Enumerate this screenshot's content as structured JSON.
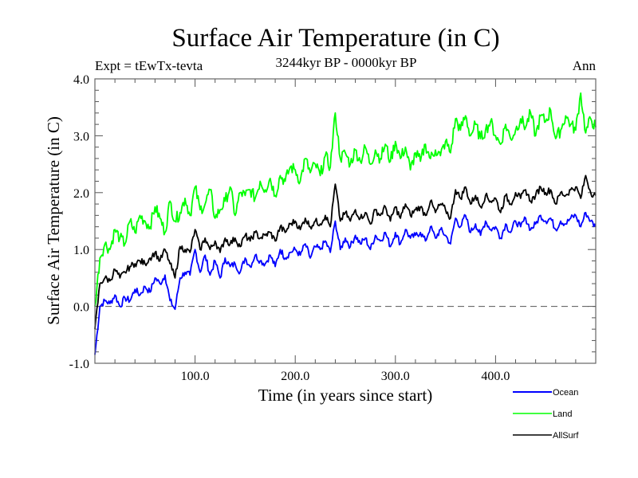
{
  "chart_data": {
    "type": "line",
    "title": "Surface Air Temperature (in C)",
    "subtitle": "3244kyr BP - 0000kyr BP",
    "left_annotation": "Expt = tEwTx-tevta",
    "right_annotation": "Ann",
    "xlabel": "Time (in years since start)",
    "ylabel": "Surface Air Temperature (in C)",
    "xlim": [
      0,
      500
    ],
    "ylim": [
      -1.0,
      4.0
    ],
    "xticks": [
      100,
      200,
      300,
      400
    ],
    "xtick_labels": [
      "100.0",
      "200.0",
      "300.0",
      "400.0"
    ],
    "xminor_step": 20,
    "yticks": [
      -1.0,
      0.0,
      1.0,
      2.0,
      3.0,
      4.0
    ],
    "ytick_labels": [
      "-1.0",
      "0.0",
      "1.0",
      "2.0",
      "3.0",
      "4.0"
    ],
    "yminor_step": 0.2,
    "reference_line": {
      "y": 0.0,
      "style": "dashed"
    },
    "grid": false,
    "legend_position": "bottom-right",
    "x": [
      0,
      5,
      10,
      15,
      20,
      25,
      30,
      35,
      40,
      45,
      50,
      55,
      60,
      65,
      70,
      75,
      80,
      85,
      90,
      95,
      100,
      105,
      110,
      115,
      120,
      125,
      130,
      135,
      140,
      145,
      150,
      155,
      160,
      165,
      170,
      175,
      180,
      185,
      190,
      195,
      200,
      205,
      210,
      215,
      220,
      225,
      230,
      235,
      240,
      245,
      250,
      255,
      260,
      265,
      270,
      275,
      280,
      285,
      290,
      295,
      300,
      305,
      310,
      315,
      320,
      325,
      330,
      335,
      340,
      345,
      350,
      355,
      360,
      365,
      370,
      375,
      380,
      385,
      390,
      395,
      400,
      405,
      410,
      415,
      420,
      425,
      430,
      435,
      440,
      445,
      450,
      455,
      460,
      465,
      470,
      475,
      480,
      485,
      490,
      495,
      500
    ],
    "series": [
      {
        "name": "Ocean",
        "color": "#0000ff",
        "values": [
          -0.85,
          0.0,
          0.1,
          0.05,
          0.2,
          0.0,
          0.15,
          0.1,
          0.3,
          0.2,
          0.35,
          0.25,
          0.5,
          0.4,
          0.55,
          0.1,
          -0.05,
          0.5,
          0.6,
          0.55,
          1.0,
          0.6,
          0.9,
          0.55,
          0.8,
          0.5,
          0.85,
          0.7,
          0.75,
          0.6,
          0.85,
          0.7,
          0.9,
          0.8,
          0.75,
          0.9,
          0.7,
          1.0,
          0.85,
          0.95,
          1.0,
          0.9,
          1.1,
          0.85,
          1.05,
          1.0,
          1.15,
          0.95,
          1.5,
          1.0,
          1.2,
          1.05,
          1.25,
          1.1,
          1.2,
          1.0,
          1.25,
          1.15,
          1.3,
          1.05,
          1.3,
          1.1,
          1.35,
          1.2,
          1.25,
          1.3,
          1.15,
          1.4,
          1.2,
          1.35,
          1.25,
          1.1,
          1.55,
          1.4,
          1.6,
          1.3,
          1.45,
          1.25,
          1.5,
          1.35,
          1.4,
          1.2,
          1.45,
          1.3,
          1.5,
          1.4,
          1.55,
          1.35,
          1.45,
          1.6,
          1.5,
          1.55,
          1.35,
          1.5,
          1.45,
          1.55,
          1.6,
          1.4,
          1.65,
          1.5,
          1.4
        ]
      },
      {
        "name": "Land",
        "color": "#00ff00",
        "values": [
          0.0,
          0.85,
          1.1,
          1.0,
          1.35,
          1.2,
          1.1,
          1.5,
          1.3,
          1.6,
          1.5,
          1.4,
          1.75,
          1.55,
          1.3,
          1.85,
          1.5,
          1.65,
          1.9,
          1.6,
          2.1,
          1.7,
          1.8,
          2.05,
          1.55,
          1.7,
          1.85,
          2.1,
          1.6,
          2.0,
          1.95,
          2.05,
          1.9,
          2.2,
          2.05,
          2.25,
          1.95,
          2.3,
          2.2,
          2.45,
          2.4,
          2.2,
          2.6,
          2.35,
          2.5,
          2.3,
          2.65,
          2.45,
          3.4,
          2.6,
          2.7,
          2.5,
          2.75,
          2.55,
          2.8,
          2.5,
          2.75,
          2.6,
          2.85,
          2.55,
          2.9,
          2.6,
          2.8,
          2.4,
          2.7,
          2.55,
          2.85,
          2.6,
          2.75,
          2.65,
          2.9,
          2.7,
          3.3,
          3.1,
          3.35,
          3.0,
          3.2,
          2.95,
          3.1,
          3.25,
          3.0,
          2.85,
          3.2,
          2.95,
          3.1,
          3.3,
          3.15,
          3.4,
          3.0,
          3.35,
          3.25,
          3.45,
          2.95,
          3.1,
          3.35,
          3.2,
          3.1,
          3.75,
          3.05,
          3.3,
          3.15
        ]
      },
      {
        "name": "AllSurf",
        "color": "#000000",
        "values": [
          -0.4,
          0.4,
          0.5,
          0.45,
          0.65,
          0.5,
          0.6,
          0.7,
          0.75,
          0.8,
          0.75,
          0.85,
          0.95,
          0.8,
          1.0,
          0.75,
          0.5,
          1.05,
          1.0,
          0.95,
          1.35,
          1.0,
          1.2,
          1.0,
          1.15,
          0.95,
          1.2,
          1.1,
          1.2,
          1.05,
          1.25,
          1.15,
          1.3,
          1.2,
          1.25,
          1.3,
          1.15,
          1.4,
          1.3,
          1.45,
          1.5,
          1.35,
          1.55,
          1.4,
          1.5,
          1.45,
          1.6,
          1.4,
          2.15,
          1.5,
          1.65,
          1.5,
          1.7,
          1.55,
          1.65,
          1.45,
          1.7,
          1.6,
          1.75,
          1.5,
          1.75,
          1.55,
          1.8,
          1.6,
          1.7,
          1.75,
          1.6,
          1.85,
          1.65,
          1.8,
          1.7,
          1.55,
          2.05,
          1.9,
          2.1,
          1.8,
          1.95,
          1.75,
          1.95,
          1.85,
          1.9,
          1.65,
          1.95,
          1.8,
          2.0,
          1.9,
          2.05,
          1.85,
          1.95,
          2.1,
          2.0,
          2.05,
          1.8,
          2.0,
          1.95,
          2.05,
          2.1,
          1.9,
          2.3,
          2.0,
          1.95
        ]
      }
    ]
  }
}
